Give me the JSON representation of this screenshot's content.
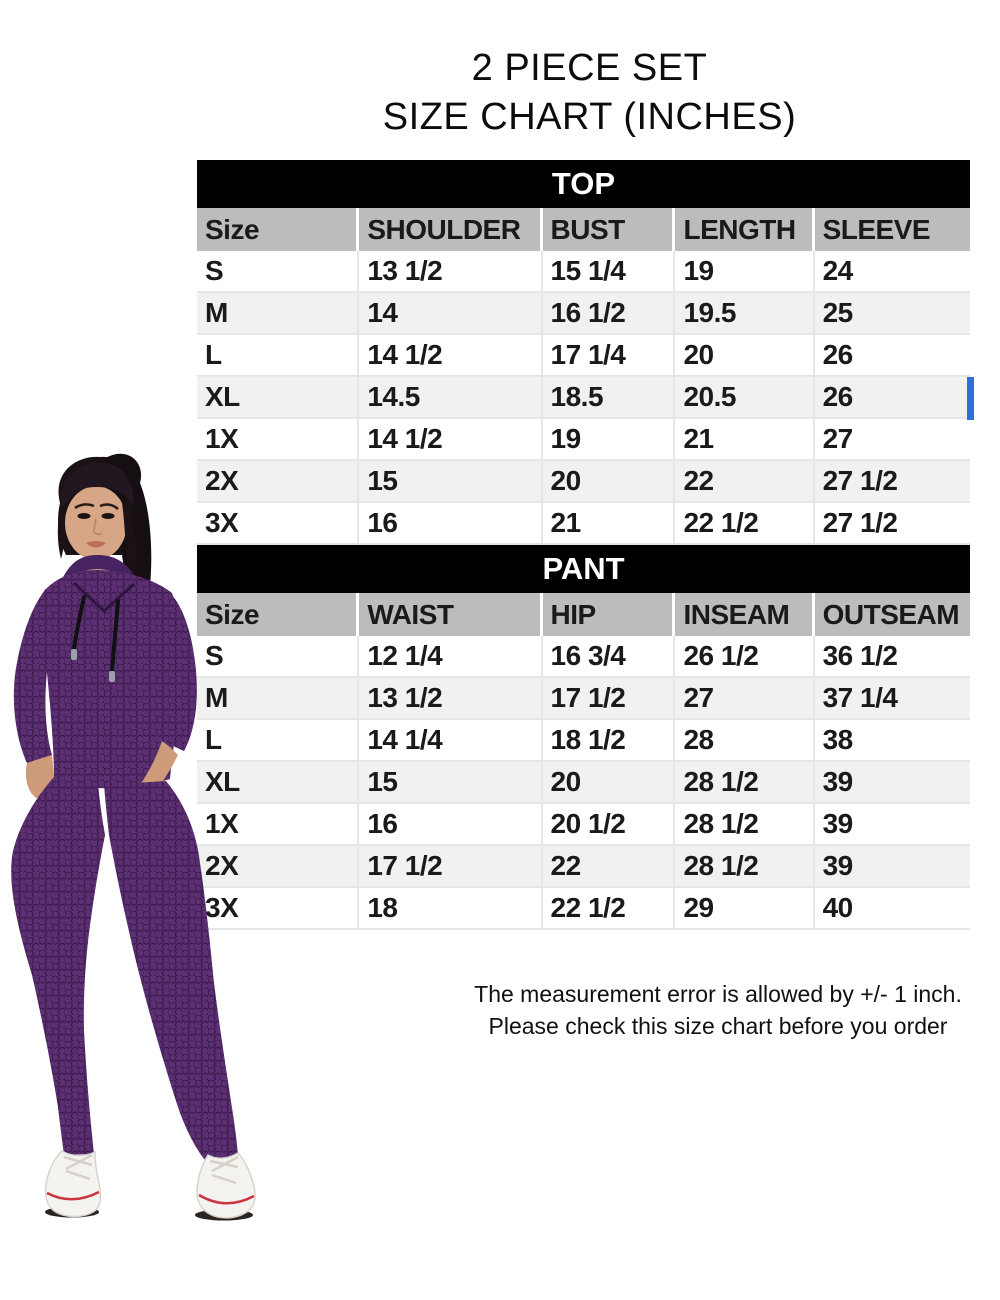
{
  "title": {
    "line1": "2 PIECE SET",
    "line2": "SIZE CHART (INCHES)"
  },
  "chart_data": [
    {
      "type": "table",
      "title": "TOP",
      "columns": [
        "Size",
        "SHOULDER",
        "BUST",
        "LENGTH",
        "SLEEVE"
      ],
      "rows": [
        [
          "S",
          "13 1/2",
          "15 1/4",
          "19",
          "24"
        ],
        [
          "M",
          "14",
          "16 1/2",
          "19.5",
          "25"
        ],
        [
          "L",
          "14 1/2",
          "17 1/4",
          "20",
          "26"
        ],
        [
          "XL",
          "14.5",
          "18.5",
          "20.5",
          "26"
        ],
        [
          "1X",
          "14 1/2",
          "19",
          "21",
          "27"
        ],
        [
          "2X",
          "15",
          "20",
          "22",
          "27 1/2"
        ],
        [
          "3X",
          "16",
          "21",
          "22 1/2",
          "27 1/2"
        ]
      ]
    },
    {
      "type": "table",
      "title": "PANT",
      "columns": [
        "Size",
        "WAIST",
        "HIP",
        "INSEAM",
        "OUTSEAM"
      ],
      "rows": [
        [
          "S",
          "12 1/4",
          "16 3/4",
          "26 1/2",
          "36 1/2"
        ],
        [
          "M",
          "13 1/2",
          "17 1/2",
          "27",
          "37 1/4"
        ],
        [
          "L",
          "14 1/4",
          "18 1/2",
          "28",
          "38"
        ],
        [
          "XL",
          "15",
          "20",
          "28 1/2",
          "39"
        ],
        [
          "1X",
          "16",
          "20 1/2",
          "28 1/2",
          "39"
        ],
        [
          "2X",
          "17 1/2",
          "22",
          "28 1/2",
          "39"
        ],
        [
          "3X",
          "18",
          "22 1/2",
          "29",
          "40"
        ]
      ]
    }
  ],
  "footer": {
    "line1": "The measurement error is allowed by +/- 1 inch.",
    "line2": "Please check this size chart before you order"
  },
  "model_photo": {
    "alt": "Model wearing a purple honeycomb-textured hooded top with black drawstrings and matching purple leggings with white sneakers"
  },
  "colors": {
    "section_band_bg": "#000000",
    "section_band_text": "#ffffff",
    "column_header_bg": "#bcbcbc",
    "row_alt_bg": "#f1f1f1",
    "grid_line": "#e6e6e6",
    "table_text": "#1a1a1a",
    "selection_artifact": "#2b71d8",
    "garment_base": "#5b2f72",
    "garment_texture": "#3a1b4c",
    "drawstring": "#111111"
  }
}
